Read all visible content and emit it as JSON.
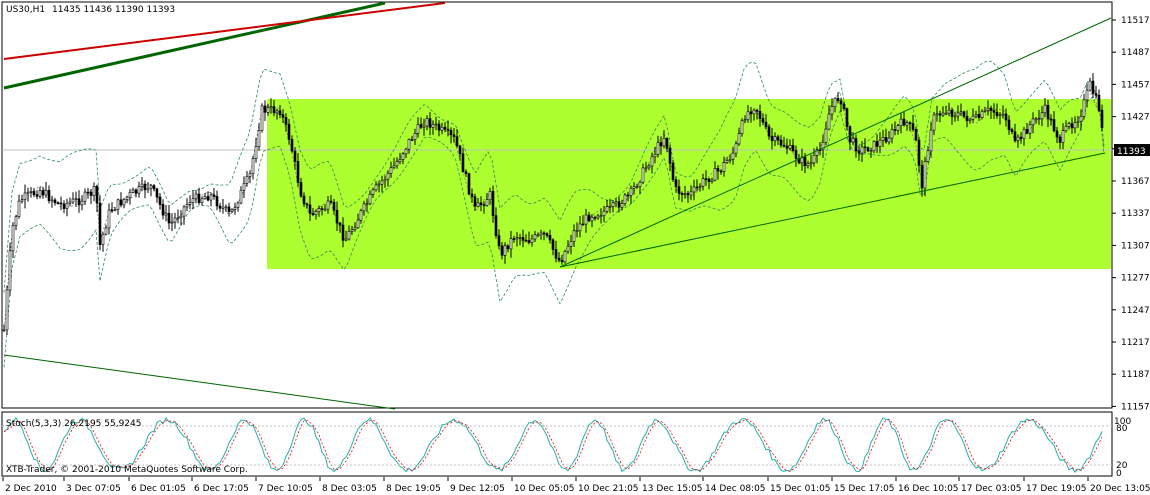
{
  "main_panel": {
    "symbol_label": "US30,H1",
    "ohlc": "11435 11436 11390 11393",
    "price_ticks": [
      "11517",
      "11487",
      "11457",
      "11427",
      "11397",
      "11367",
      "11337",
      "11307",
      "11277",
      "11247",
      "11217",
      "11187",
      "11157"
    ],
    "last_price_label": "11393",
    "colors": {
      "bull": "#000000",
      "bear": "#000000",
      "highlight_zone": "#adff2f",
      "bands": "#2e8b57",
      "trendline_green": "#006400",
      "trendline_red": "#cc0000",
      "ma_line": "#808080"
    }
  },
  "stoch_panel": {
    "title": "Stoch(5,3,3) 26,2195 55,9245",
    "levels": [
      "100",
      "80",
      "20",
      "0"
    ],
    "colors": {
      "main": "#20b2aa",
      "signal": "#ff0000"
    }
  },
  "watermark": "XTB-Trader, © 2001-2010 MetaQuotes Software Corp.",
  "time_axis": [
    "2 Dec 2010",
    "3 Dec 07:05",
    "6 Dec 01:05",
    "6 Dec 17:05",
    "7 Dec 10:05",
    "8 Dec 03:05",
    "8 Dec 19:05",
    "9 Dec 12:05",
    "10 Dec 05:05",
    "10 Dec 21:05",
    "13 Dec 15:05",
    "14 Dec 08:05",
    "15 Dec 01:05",
    "15 Dec 17:05",
    "16 Dec 10:05",
    "17 Dec 03:05",
    "17 Dec 19:05",
    "20 Dec 13:05"
  ]
}
